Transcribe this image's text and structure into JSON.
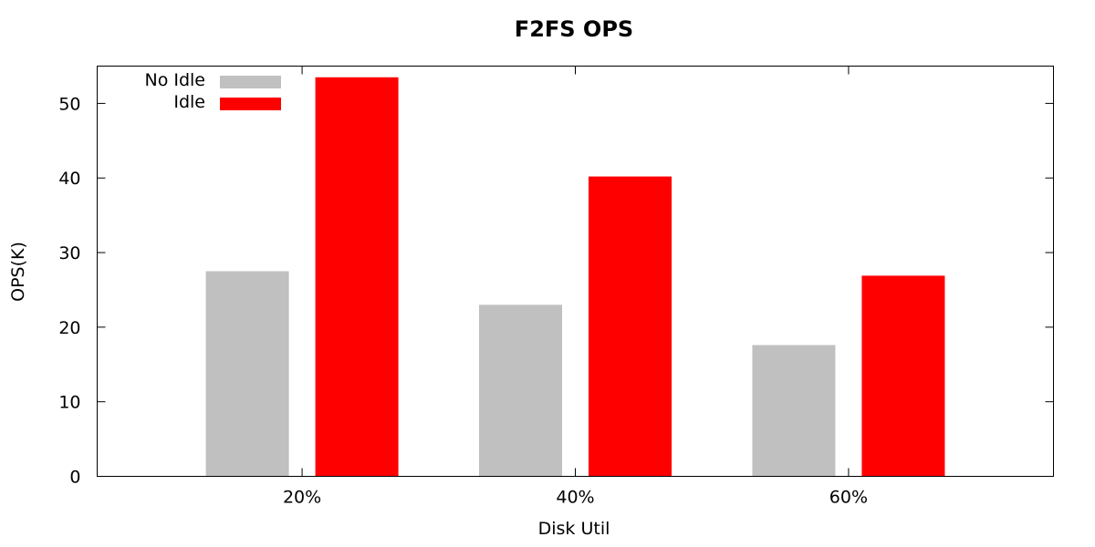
{
  "chart_data": {
    "type": "bar",
    "title": "F2FS OPS",
    "xlabel": "Disk Util",
    "ylabel": "OPS(K)",
    "categories": [
      "20%",
      "40%",
      "60%"
    ],
    "series": [
      {
        "name": "No Idle",
        "color": "#c0c0c0",
        "values": [
          27.5,
          23.0,
          17.6
        ]
      },
      {
        "name": "Idle",
        "color": "#ff0000",
        "values": [
          53.5,
          40.2,
          26.9
        ]
      }
    ],
    "ylim": [
      0,
      55
    ],
    "yticks": [
      0,
      10,
      20,
      30,
      40,
      50
    ],
    "legend_position": "top-left",
    "grid": false
  }
}
